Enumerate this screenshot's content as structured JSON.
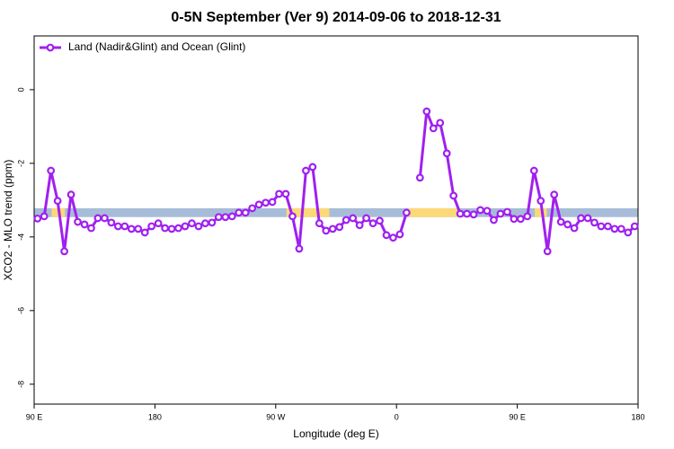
{
  "chart_data": {
    "type": "line",
    "title": "0-5N September (Ver 9)   2014-09-06 to 2018-12-31",
    "x_label": "Longitude (deg E)",
    "y_label": "XCO2 - MLO trend (ppm)",
    "xlim": [
      90,
      540
    ],
    "ylim": [
      -8.54,
      1.46
    ],
    "xticks": [
      {
        "value": 90,
        "label": "90 E"
      },
      180,
      {
        "value": 270,
        "label": "90 W"
      },
      {
        "value": 360,
        "label": "0"
      },
      {
        "value": 450,
        "label": "90 E"
      },
      {
        "value": 540,
        "label": "180"
      }
    ],
    "yticks": [
      0,
      -2,
      -4,
      -6,
      -8
    ],
    "legend": "top-left",
    "band": {
      "ylim": [
        -3.46,
        -3.22
      ],
      "color": "#a7bcd8",
      "segments": [
        {
          "color": "#fbd978",
          "xlim": [
            103,
            113
          ]
        },
        {
          "color": "#fbd978",
          "xlim": [
            278,
            310
          ]
        },
        {
          "color": "#fbd978",
          "xlim": [
            369,
            406
          ]
        },
        {
          "color": "#fbd978",
          "xlim": [
            463,
            472
          ]
        }
      ]
    },
    "x": [
      92.5,
      97.5,
      102.5,
      107.5,
      112.5,
      117.5,
      122.5,
      127.5,
      132.5,
      137.5,
      142.5,
      147.5,
      152.5,
      157.5,
      162.5,
      167.5,
      172.5,
      177.5,
      182.5,
      187.5,
      192.5,
      197.5,
      202.5,
      207.5,
      212.5,
      217.5,
      222.5,
      227.5,
      232.5,
      237.5,
      242.5,
      247.5,
      252.5,
      257.5,
      262.5,
      267.5,
      272.5,
      277.5,
      282.5,
      287.5,
      292.5,
      297.5,
      302.5,
      307.5,
      312.5,
      317.5,
      322.5,
      327.5,
      332.5,
      337.5,
      342.5,
      347.5,
      352.5,
      357.5,
      362.5,
      367.5,
      372.5,
      377.5,
      382.5,
      387.5,
      392.5,
      397.5,
      402.5,
      407.5,
      412.5,
      417.5,
      422.5,
      427.5,
      432.5,
      437.5,
      442.5,
      447.5,
      452.5,
      457.5,
      462.5,
      467.5,
      472.5,
      477.5,
      482.5,
      487.5,
      492.5,
      497.5,
      502.5,
      507.5,
      512.5,
      517.5,
      522.5,
      527.5,
      532.5,
      537.5
    ],
    "series": [
      {
        "name": "Land (Nadir&Glint) and Ocean (Glint)",
        "color": "#a020f0",
        "values": [
          -3.5,
          -3.44,
          -2.2,
          -3.02,
          -4.39,
          -2.85,
          -3.59,
          -3.66,
          -3.76,
          -3.49,
          -3.49,
          -3.61,
          -3.71,
          -3.71,
          -3.78,
          -3.78,
          -3.88,
          -3.71,
          -3.63,
          -3.76,
          -3.78,
          -3.76,
          -3.71,
          -3.63,
          -3.71,
          -3.63,
          -3.61,
          -3.46,
          -3.46,
          -3.44,
          -3.34,
          -3.34,
          -3.22,
          -3.12,
          -3.07,
          -3.05,
          -2.83,
          -2.83,
          -3.44,
          -4.32,
          -2.2,
          -2.1,
          -3.63,
          -3.83,
          -3.78,
          -3.73,
          -3.54,
          -3.49,
          -3.68,
          -3.49,
          -3.63,
          -3.56,
          -3.95,
          -4.02,
          -3.93,
          -3.34,
          null,
          -2.39,
          -0.59,
          -1.05,
          -0.9,
          -1.73,
          -2.88,
          -3.37,
          -3.37,
          -3.39,
          -3.27,
          -3.29,
          -3.54,
          -3.37,
          -3.32,
          -3.51,
          -3.51,
          -3.44,
          -2.2,
          -3.02,
          -4.39,
          -2.85,
          -3.59,
          -3.66,
          -3.76,
          -3.49,
          -3.49,
          -3.61,
          -3.71,
          -3.71,
          -3.78,
          -3.78,
          -3.88,
          -3.71
        ]
      }
    ]
  }
}
